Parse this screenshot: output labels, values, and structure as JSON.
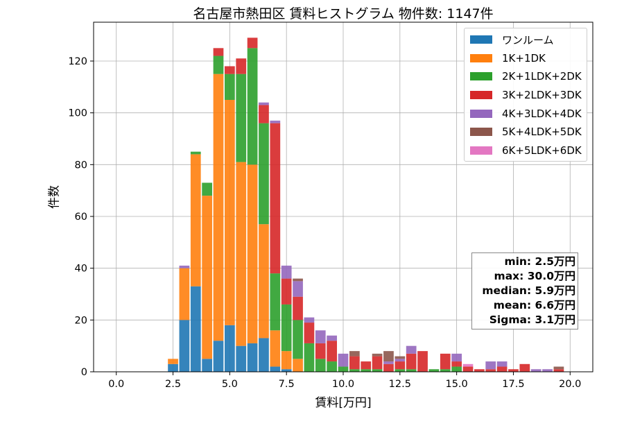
{
  "title": "名古屋市熱田区 賃料ヒストグラム  物件数: 1147件",
  "xlabel": "賃料[万円]",
  "ylabel": "件数",
  "stats": {
    "min": "min: 2.5万円",
    "max": "max: 30.0万円",
    "median": "median: 5.9万円",
    "mean": "mean: 6.6万円",
    "sigma": "Sigma: 3.1万円"
  },
  "chart_data": {
    "type": "bar",
    "stacked": true,
    "xlim": [
      -1.0,
      21.0
    ],
    "ylim": [
      0,
      135
    ],
    "grid": true,
    "legend_position": "top-right",
    "x_ticks": [
      0.0,
      2.5,
      5.0,
      7.5,
      10.0,
      12.5,
      15.0,
      17.5,
      20.0
    ],
    "x_tick_labels": [
      "0.0",
      "2.5",
      "5.0",
      "7.5",
      "10.0",
      "12.5",
      "15.0",
      "17.5",
      "20.0"
    ],
    "y_ticks": [
      0,
      20,
      40,
      60,
      80,
      100,
      120
    ],
    "y_tick_labels": [
      "0",
      "20",
      "40",
      "60",
      "80",
      "100",
      "120"
    ],
    "bin_centers": [
      2.5,
      3.0,
      3.5,
      4.0,
      4.5,
      5.0,
      5.5,
      6.0,
      6.5,
      7.0,
      7.5,
      8.0,
      8.5,
      9.0,
      9.5,
      10.0,
      10.5,
      11.0,
      11.5,
      12.0,
      12.5,
      13.0,
      13.5,
      14.0,
      14.5,
      15.0,
      15.5,
      16.0,
      16.5,
      17.0,
      17.5,
      18.0,
      18.5,
      19.0,
      19.5
    ],
    "series": [
      {
        "name": "ワンルーム",
        "color": "#1f77b4",
        "values": [
          3,
          20,
          33,
          5,
          12,
          18,
          10,
          11,
          13,
          2,
          1,
          0,
          0,
          0,
          0,
          0,
          0,
          0,
          0,
          0,
          0,
          0,
          0,
          0,
          0,
          0,
          0,
          0,
          0,
          0,
          0,
          0,
          0,
          0,
          0
        ]
      },
      {
        "name": "1K+1DK",
        "color": "#ff7f0e",
        "values": [
          2,
          20,
          51,
          63,
          103,
          87,
          71,
          69,
          44,
          14,
          7,
          5,
          0,
          0,
          0,
          0,
          0,
          0,
          0,
          0,
          0,
          0,
          0,
          0,
          0,
          0,
          0,
          0,
          0,
          0,
          0,
          0,
          0,
          0,
          0
        ]
      },
      {
        "name": "2K+1LDK+2DK",
        "color": "#2ca02c",
        "values": [
          0,
          0,
          1,
          5,
          7,
          10,
          34,
          45,
          39,
          22,
          18,
          15,
          11,
          5,
          4,
          2,
          1,
          1,
          1,
          0,
          1,
          1,
          0,
          1,
          1,
          2,
          0,
          0,
          0,
          0,
          0,
          0,
          0,
          0,
          0
        ]
      },
      {
        "name": "3K+2LDK+3DK",
        "color": "#d62728",
        "values": [
          0,
          0,
          0,
          0,
          3,
          3,
          6,
          4,
          7,
          58,
          10,
          9,
          8,
          6,
          8,
          0,
          5,
          3,
          5,
          3,
          3,
          6,
          8,
          0,
          6,
          2,
          2,
          1,
          1,
          2,
          1,
          3,
          0,
          0,
          1
        ]
      },
      {
        "name": "4K+3LDK+4DK",
        "color": "#9467bd",
        "values": [
          0,
          1,
          0,
          0,
          0,
          0,
          0,
          0,
          1,
          1,
          5,
          6,
          2,
          5,
          2,
          5,
          0,
          0,
          0,
          1,
          1,
          3,
          0,
          0,
          0,
          3,
          0,
          0,
          3,
          2,
          0,
          0,
          1,
          1,
          0
        ]
      },
      {
        "name": "5K+4LDK+5DK",
        "color": "#8c564b",
        "values": [
          0,
          0,
          0,
          0,
          0,
          0,
          0,
          0,
          0,
          0,
          0,
          1,
          0,
          0,
          0,
          0,
          2,
          0,
          1,
          4,
          1,
          0,
          0,
          0,
          0,
          0,
          0,
          0,
          0,
          0,
          0,
          0,
          0,
          0,
          1
        ]
      },
      {
        "name": "6K+5LDK+6DK",
        "color": "#e377c2",
        "values": [
          0,
          0,
          0,
          0,
          0,
          0,
          0,
          0,
          0,
          0,
          0,
          0,
          0,
          0,
          0,
          0,
          0,
          0,
          0,
          0,
          0,
          0,
          0,
          0,
          0,
          0,
          1,
          0,
          0,
          0,
          0,
          0,
          0,
          0,
          0
        ]
      }
    ]
  }
}
